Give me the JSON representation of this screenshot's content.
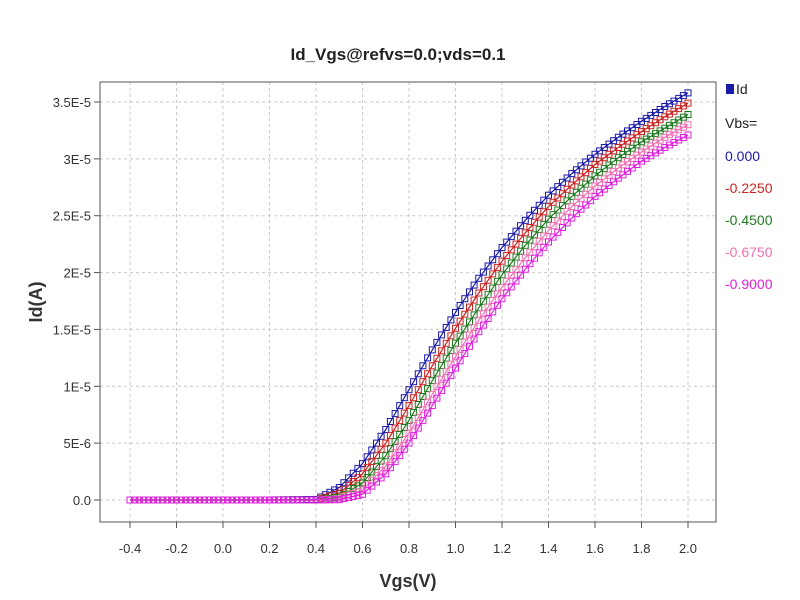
{
  "chart_data": {
    "type": "line",
    "title": "Id_Vgs@refvs=0.0;vds=0.1",
    "xlabel": "Vgs(V)",
    "ylabel": "Id(A)",
    "xlim": [
      -0.4,
      2.0
    ],
    "ylim": [
      0,
      3.5e-05
    ],
    "x_ticks": [
      -0.4,
      -0.2,
      0.0,
      0.2,
      0.4,
      0.6,
      0.8,
      1.0,
      1.2,
      1.4,
      1.6,
      1.8,
      2.0
    ],
    "x_tick_labels": [
      "-0.4",
      "-0.2",
      "0.0",
      "0.2",
      "0.4",
      "0.6",
      "0.8",
      "1.0",
      "1.2",
      "1.4",
      "1.6",
      "1.8",
      "2.0"
    ],
    "y_ticks": [
      0,
      5e-06,
      1e-05,
      1.5e-05,
      2e-05,
      2.5e-05,
      3e-05,
      3.5e-05
    ],
    "y_tick_labels": [
      "0.0",
      "5E-6",
      "1E-5",
      "1.5E-5",
      "2E-5",
      "2.5E-5",
      "3E-5",
      "3.5E-5"
    ],
    "grid": true,
    "marker": "square",
    "legend": {
      "placement": "right",
      "marker_label": "Id",
      "group_title": "Vbs=",
      "entries": [
        "0.000",
        "-0.2250",
        "-0.4500",
        "-0.6750",
        "-0.9000"
      ]
    },
    "x": [
      -0.4,
      -0.2,
      0.0,
      0.2,
      0.4,
      0.5,
      0.6,
      0.7,
      0.8,
      0.9,
      1.0,
      1.1,
      1.2,
      1.3,
      1.4,
      1.5,
      1.6,
      1.7,
      1.8,
      1.9,
      2.0
    ],
    "series": [
      {
        "name": "0.000",
        "color": "#1a1aa8",
        "values": [
          0,
          0,
          0,
          0,
          5e-08,
          1.1e-06,
          3.2e-06,
          6.2e-06,
          9.7e-06,
          1.32e-05,
          1.65e-05,
          1.95e-05,
          2.22e-05,
          2.46e-05,
          2.68e-05,
          2.87e-05,
          3.04e-05,
          3.19e-05,
          3.33e-05,
          3.46e-05,
          3.58e-05
        ]
      },
      {
        "name": "-0.2250",
        "color": "#cc2222",
        "values": [
          0,
          0,
          0,
          0,
          0,
          6e-07,
          2.3e-06,
          5e-06,
          8.3e-06,
          1.18e-05,
          1.51e-05,
          1.82e-05,
          2.1e-05,
          2.35e-05,
          2.58e-05,
          2.77e-05,
          2.95e-05,
          3.1e-05,
          3.24e-05,
          3.37e-05,
          3.49e-05
        ]
      },
      {
        "name": "-0.4500",
        "color": "#1f7a1f",
        "values": [
          0,
          0,
          0,
          0,
          0,
          2.5e-07,
          1.5e-06,
          3.9e-06,
          7e-06,
          1.05e-05,
          1.38e-05,
          1.69e-05,
          1.98e-05,
          2.24e-05,
          2.47e-05,
          2.67e-05,
          2.85e-05,
          3.01e-05,
          3.15e-05,
          3.27e-05,
          3.39e-05
        ]
      },
      {
        "name": "-0.6750",
        "color": "#f070b0",
        "values": [
          0,
          0,
          0,
          0,
          0,
          1e-07,
          9e-07,
          3e-06,
          5.9e-06,
          9.3e-06,
          1.26e-05,
          1.58e-05,
          1.87e-05,
          2.13e-05,
          2.37e-05,
          2.58e-05,
          2.76e-05,
          2.92e-05,
          3.06e-05,
          3.19e-05,
          3.3e-05
        ]
      },
      {
        "name": "-0.9000",
        "color": "#e020e0",
        "values": [
          0,
          0,
          0,
          0,
          0,
          3e-08,
          5e-07,
          2.3e-06,
          5e-06,
          8.3e-06,
          1.16e-05,
          1.48e-05,
          1.77e-05,
          2.03e-05,
          2.27e-05,
          2.48e-05,
          2.67e-05,
          2.83e-05,
          2.98e-05,
          3.1e-05,
          3.21e-05
        ]
      }
    ]
  }
}
